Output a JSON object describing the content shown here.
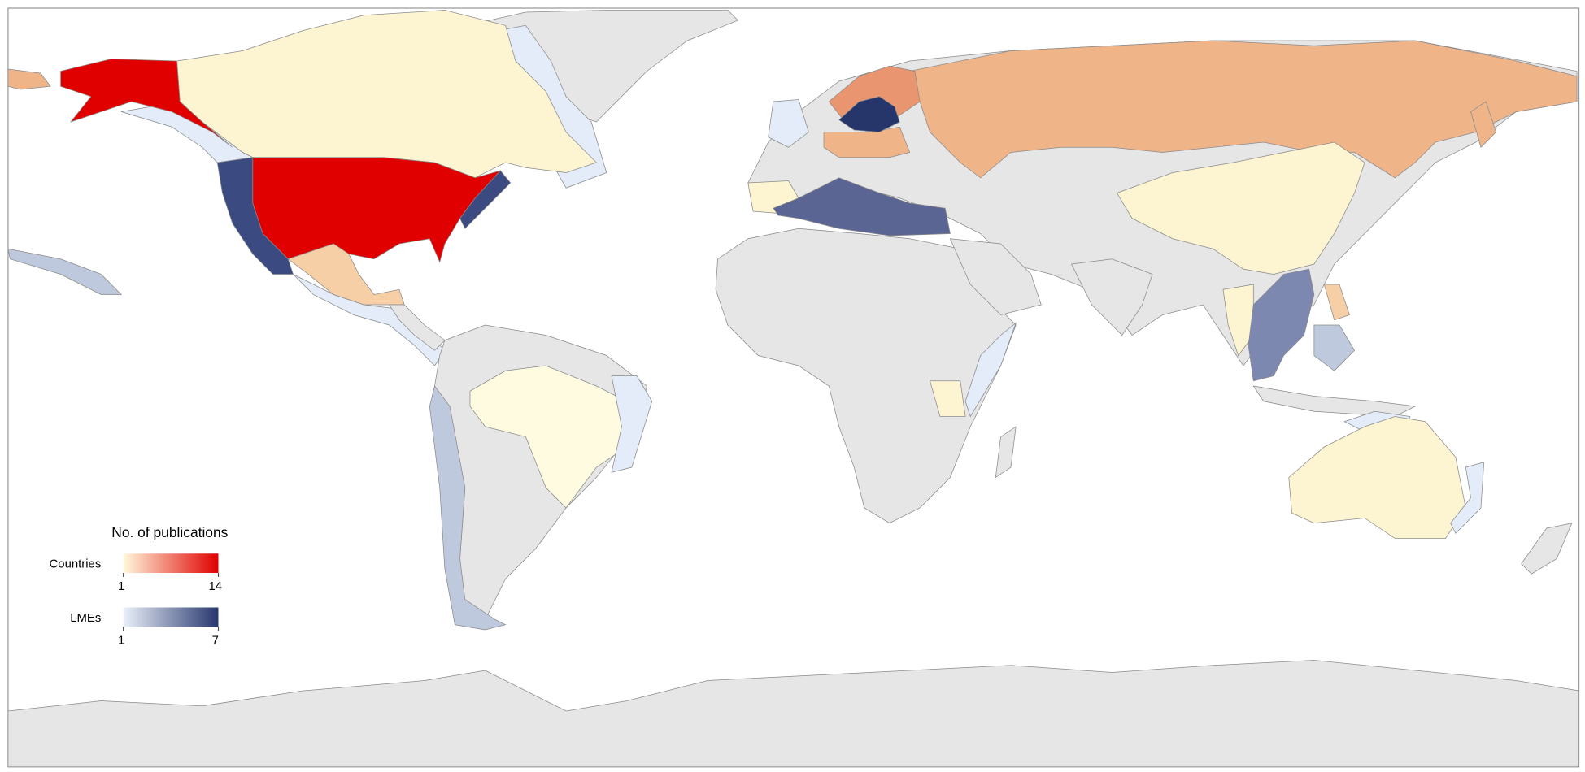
{
  "legend": {
    "title": "No. of publications",
    "scales": [
      {
        "label": "Countries",
        "min": 1,
        "max": 14,
        "colors": [
          "#fff8dc",
          "#e00000"
        ]
      },
      {
        "label": "LMEs",
        "min": 1,
        "max": 7,
        "colors": [
          "#eaf0f9",
          "#27376e"
        ]
      }
    ]
  }
}
